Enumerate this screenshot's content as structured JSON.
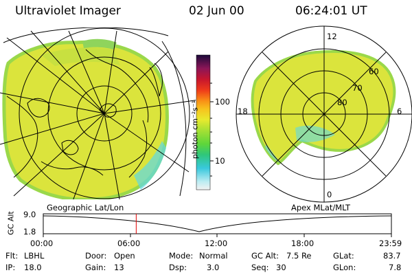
{
  "header": {
    "title": "Ultraviolet Imager",
    "date": "02 Jun 00",
    "time": "06:24:01 UT"
  },
  "colorbar": {
    "unit_label": "photon cm⁻²s⁻¹",
    "ticks": [
      "100",
      "10"
    ]
  },
  "polar_plot": {
    "mlt_labels": [
      "12",
      "18",
      "6",
      "0"
    ],
    "mlat_labels": [
      "60",
      "70",
      "80"
    ]
  },
  "map_labels": {
    "left": "Geographic Lat/Lon",
    "right": "Apex MLat/MLT"
  },
  "altitude_plot": {
    "y_label": "GC Alt",
    "y_ticks": [
      "9.0",
      "1.8"
    ],
    "x_ticks": [
      "00:00",
      "06:00",
      "12:00",
      "18:00",
      "23:59"
    ],
    "current_time_fraction": 0.267
  },
  "info": [
    {
      "label": "Flt:",
      "value": "LBHL"
    },
    {
      "label": "IP:",
      "value": "18.0"
    },
    {
      "label": "Door:",
      "value": "Open"
    },
    {
      "label": "Gain:",
      "value": "13"
    },
    {
      "label": "Mode:",
      "value": "Normal"
    },
    {
      "label": "Dsp:",
      "value": "3.0"
    },
    {
      "label": "GC Alt:",
      "value": "7.5 Re"
    },
    {
      "label": "Seq:",
      "value": "30"
    },
    {
      "label": "GLat:",
      "value": "83.7"
    },
    {
      "label": "GLon:",
      "value": "7.8"
    }
  ],
  "colors": {
    "aurora_main": "#dbe43c",
    "aurora_edge": "#9ad84a",
    "cyan": "#5ed8e6",
    "marker": "#e00000"
  }
}
